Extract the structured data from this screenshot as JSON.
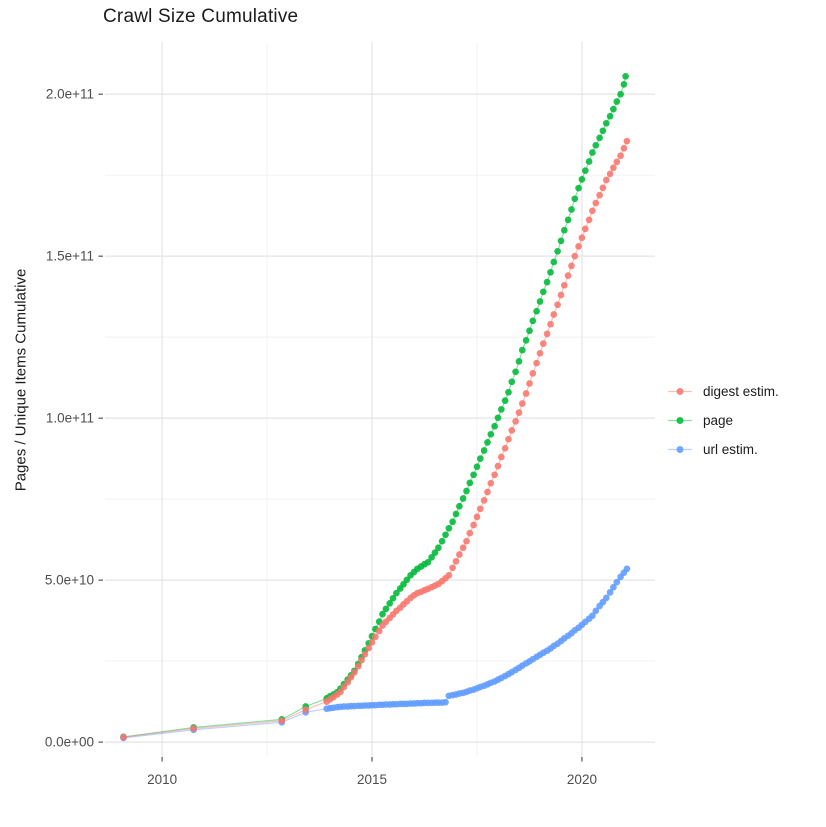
{
  "chart_data": {
    "type": "scatter",
    "title": "Crawl Size Cumulative",
    "xlabel": "",
    "ylabel": "Pages / Unique Items Cumulative",
    "grid": true,
    "legend_position": "right",
    "value_unit": "1e9 (values below are billions of pages / items)",
    "xlim": [
      2008.64,
      2021.74
    ],
    "ylim_e9": [
      -4.6,
      216.1
    ],
    "x_ticks": [
      {
        "value": 2010,
        "label": "2010"
      },
      {
        "value": 2015,
        "label": "2015"
      },
      {
        "value": 2020,
        "label": "2020"
      }
    ],
    "x_minor_ticks": [
      2012.5,
      2017.5
    ],
    "y_ticks": [
      {
        "value_e9": 0,
        "label": "0.0e+00"
      },
      {
        "value_e9": 50,
        "label": "5.0e+10"
      },
      {
        "value_e9": 100,
        "label": "1.0e+11"
      },
      {
        "value_e9": 150,
        "label": "1.5e+11"
      },
      {
        "value_e9": 200,
        "label": "2.0e+11"
      }
    ],
    "y_minor_ticks_e9": [
      25,
      75,
      125,
      175
    ],
    "draw_order": [
      1,
      2,
      0
    ],
    "series": [
      {
        "name": "digest estim.",
        "color": "#F8766D",
        "points": [
          [
            2009.08,
            1.5
          ],
          [
            2010.75,
            4.2
          ],
          [
            2012.85,
            6.6
          ],
          [
            2013.42,
            10.0
          ],
          [
            2013.92,
            12.5
          ],
          [
            2014.0,
            13.2
          ],
          [
            2014.08,
            13.9
          ],
          [
            2014.17,
            14.7
          ],
          [
            2014.25,
            15.5
          ],
          [
            2014.33,
            17.0
          ],
          [
            2014.42,
            18.5
          ],
          [
            2014.5,
            20.0
          ],
          [
            2014.58,
            21.5
          ],
          [
            2014.67,
            23.4
          ],
          [
            2014.75,
            25.3
          ],
          [
            2014.83,
            27.1
          ],
          [
            2014.92,
            29.0
          ],
          [
            2015.0,
            30.8
          ],
          [
            2015.08,
            32.5
          ],
          [
            2015.17,
            34.3
          ],
          [
            2015.25,
            36.0
          ],
          [
            2015.33,
            37.1
          ],
          [
            2015.42,
            38.3
          ],
          [
            2015.5,
            39.4
          ],
          [
            2015.58,
            40.5
          ],
          [
            2015.67,
            41.5
          ],
          [
            2015.75,
            42.5
          ],
          [
            2015.83,
            43.5
          ],
          [
            2015.92,
            44.5
          ],
          [
            2016.0,
            45.3
          ],
          [
            2016.08,
            46.0
          ],
          [
            2016.17,
            46.4
          ],
          [
            2016.25,
            46.9
          ],
          [
            2016.33,
            47.3
          ],
          [
            2016.42,
            47.8
          ],
          [
            2016.5,
            48.3
          ],
          [
            2016.58,
            48.8
          ],
          [
            2016.67,
            49.7
          ],
          [
            2016.75,
            50.6
          ],
          [
            2016.83,
            51.5
          ],
          [
            2016.92,
            53.8
          ],
          [
            2017.0,
            55.8
          ],
          [
            2017.08,
            57.9
          ],
          [
            2017.17,
            60.0
          ],
          [
            2017.25,
            62.0
          ],
          [
            2017.33,
            64.5
          ],
          [
            2017.42,
            67.0
          ],
          [
            2017.5,
            69.5
          ],
          [
            2017.58,
            72.0
          ],
          [
            2017.67,
            74.6
          ],
          [
            2017.75,
            77.2
          ],
          [
            2017.83,
            79.9
          ],
          [
            2017.92,
            82.5
          ],
          [
            2018.0,
            85.2
          ],
          [
            2018.08,
            88.0
          ],
          [
            2018.17,
            90.7
          ],
          [
            2018.25,
            93.5
          ],
          [
            2018.33,
            96.2
          ],
          [
            2018.42,
            99.0
          ],
          [
            2018.5,
            101.7
          ],
          [
            2018.58,
            104.5
          ],
          [
            2018.67,
            107.6
          ],
          [
            2018.75,
            110.7
          ],
          [
            2018.83,
            113.8
          ],
          [
            2018.92,
            117.0
          ],
          [
            2019.0,
            120.0
          ],
          [
            2019.08,
            123.0
          ],
          [
            2019.17,
            126.0
          ],
          [
            2019.25,
            129.0
          ],
          [
            2019.33,
            132.0
          ],
          [
            2019.42,
            135.0
          ],
          [
            2019.5,
            138.0
          ],
          [
            2019.58,
            141.0
          ],
          [
            2019.67,
            144.0
          ],
          [
            2019.75,
            147.0
          ],
          [
            2019.83,
            150.0
          ],
          [
            2019.92,
            153.0
          ],
          [
            2020.0,
            155.7
          ],
          [
            2020.08,
            158.4
          ],
          [
            2020.17,
            161.2
          ],
          [
            2020.25,
            164.0
          ],
          [
            2020.33,
            166.4
          ],
          [
            2020.42,
            168.8
          ],
          [
            2020.5,
            171.1
          ],
          [
            2020.58,
            173.5
          ],
          [
            2020.67,
            175.4
          ],
          [
            2020.75,
            177.3
          ],
          [
            2020.83,
            179.1
          ],
          [
            2020.92,
            181.0
          ],
          [
            2021.0,
            183.3
          ],
          [
            2021.07,
            185.5
          ]
        ]
      },
      {
        "name": "page",
        "color": "#00BA38",
        "points": [
          [
            2009.08,
            1.6
          ],
          [
            2010.75,
            4.5
          ],
          [
            2012.85,
            7.0
          ],
          [
            2013.42,
            11.0
          ],
          [
            2013.92,
            13.5
          ],
          [
            2014.0,
            14.1
          ],
          [
            2014.08,
            14.7
          ],
          [
            2014.17,
            15.4
          ],
          [
            2014.25,
            16.5
          ],
          [
            2014.33,
            17.9
          ],
          [
            2014.42,
            19.3
          ],
          [
            2014.5,
            20.6
          ],
          [
            2014.58,
            22.0
          ],
          [
            2014.67,
            24.1
          ],
          [
            2014.75,
            26.2
          ],
          [
            2014.83,
            28.3
          ],
          [
            2014.92,
            30.5
          ],
          [
            2015.0,
            32.7
          ],
          [
            2015.08,
            34.9
          ],
          [
            2015.17,
            37.2
          ],
          [
            2015.25,
            39.5
          ],
          [
            2015.33,
            41.1
          ],
          [
            2015.42,
            42.8
          ],
          [
            2015.5,
            44.4
          ],
          [
            2015.58,
            46.0
          ],
          [
            2015.67,
            47.4
          ],
          [
            2015.75,
            48.7
          ],
          [
            2015.83,
            50.1
          ],
          [
            2015.92,
            51.5
          ],
          [
            2016.0,
            52.5
          ],
          [
            2016.08,
            53.5
          ],
          [
            2016.17,
            54.2
          ],
          [
            2016.25,
            54.9
          ],
          [
            2016.33,
            55.5
          ],
          [
            2016.42,
            57.0
          ],
          [
            2016.5,
            58.5
          ],
          [
            2016.58,
            60.0
          ],
          [
            2016.67,
            62.0
          ],
          [
            2016.75,
            64.0
          ],
          [
            2016.83,
            66.0
          ],
          [
            2016.92,
            68.0
          ],
          [
            2017.0,
            70.4
          ],
          [
            2017.08,
            72.8
          ],
          [
            2017.17,
            75.2
          ],
          [
            2017.25,
            77.5
          ],
          [
            2017.33,
            80.0
          ],
          [
            2017.42,
            82.5
          ],
          [
            2017.5,
            85.0
          ],
          [
            2017.58,
            87.5
          ],
          [
            2017.67,
            90.0
          ],
          [
            2017.75,
            92.5
          ],
          [
            2017.83,
            95.0
          ],
          [
            2017.92,
            97.5
          ],
          [
            2018.0,
            100.1
          ],
          [
            2018.08,
            102.7
          ],
          [
            2018.17,
            105.4
          ],
          [
            2018.25,
            108.0
          ],
          [
            2018.33,
            111.2
          ],
          [
            2018.42,
            114.3
          ],
          [
            2018.5,
            117.5
          ],
          [
            2018.58,
            121.0
          ],
          [
            2018.67,
            124.0
          ],
          [
            2018.75,
            127.0
          ],
          [
            2018.83,
            130.0
          ],
          [
            2018.92,
            133.0
          ],
          [
            2019.0,
            136.0
          ],
          [
            2019.08,
            139.0
          ],
          [
            2019.17,
            142.0
          ],
          [
            2019.25,
            145.0
          ],
          [
            2019.33,
            148.2
          ],
          [
            2019.42,
            151.5
          ],
          [
            2019.5,
            154.7
          ],
          [
            2019.58,
            158.0
          ],
          [
            2019.67,
            161.2
          ],
          [
            2019.75,
            164.4
          ],
          [
            2019.83,
            167.7
          ],
          [
            2019.92,
            171.0
          ],
          [
            2020.0,
            173.7
          ],
          [
            2020.08,
            176.4
          ],
          [
            2020.17,
            179.2
          ],
          [
            2020.25,
            182.0
          ],
          [
            2020.33,
            184.2
          ],
          [
            2020.42,
            186.5
          ],
          [
            2020.5,
            188.7
          ],
          [
            2020.58,
            191.0
          ],
          [
            2020.67,
            193.2
          ],
          [
            2020.75,
            195.4
          ],
          [
            2020.83,
            197.7
          ],
          [
            2020.92,
            200.0
          ],
          [
            2021.0,
            203.0
          ],
          [
            2021.04,
            205.5
          ]
        ]
      },
      {
        "name": "url estim.",
        "color": "#619CFF",
        "points": [
          [
            2009.08,
            1.3
          ],
          [
            2010.75,
            3.8
          ],
          [
            2012.85,
            6.1
          ],
          [
            2013.42,
            9.2
          ],
          [
            2013.92,
            10.3
          ],
          [
            2014.0,
            10.5
          ],
          [
            2014.08,
            10.6
          ],
          [
            2014.17,
            10.8
          ],
          [
            2014.25,
            10.9
          ],
          [
            2014.33,
            11.0
          ],
          [
            2014.42,
            11.0
          ],
          [
            2014.5,
            11.1
          ],
          [
            2014.58,
            11.1
          ],
          [
            2014.67,
            11.2
          ],
          [
            2014.75,
            11.2
          ],
          [
            2014.83,
            11.3
          ],
          [
            2014.92,
            11.3
          ],
          [
            2015.0,
            11.4
          ],
          [
            2015.08,
            11.4
          ],
          [
            2015.17,
            11.5
          ],
          [
            2015.25,
            11.5
          ],
          [
            2015.33,
            11.6
          ],
          [
            2015.42,
            11.6
          ],
          [
            2015.5,
            11.7
          ],
          [
            2015.58,
            11.7
          ],
          [
            2015.67,
            11.8
          ],
          [
            2015.75,
            11.8
          ],
          [
            2015.83,
            11.8
          ],
          [
            2015.92,
            11.9
          ],
          [
            2016.0,
            11.9
          ],
          [
            2016.08,
            12.0
          ],
          [
            2016.17,
            12.0
          ],
          [
            2016.25,
            12.1
          ],
          [
            2016.33,
            12.1
          ],
          [
            2016.42,
            12.1
          ],
          [
            2016.5,
            12.2
          ],
          [
            2016.58,
            12.2
          ],
          [
            2016.67,
            12.2
          ],
          [
            2016.75,
            12.3
          ],
          [
            2016.83,
            14.3
          ],
          [
            2016.92,
            14.5
          ],
          [
            2017.0,
            14.7
          ],
          [
            2017.08,
            15.0
          ],
          [
            2017.17,
            15.2
          ],
          [
            2017.25,
            15.5
          ],
          [
            2017.33,
            15.9
          ],
          [
            2017.42,
            16.2
          ],
          [
            2017.5,
            16.6
          ],
          [
            2017.58,
            17.0
          ],
          [
            2017.67,
            17.4
          ],
          [
            2017.75,
            17.8
          ],
          [
            2017.83,
            18.3
          ],
          [
            2017.92,
            18.7
          ],
          [
            2018.0,
            19.3
          ],
          [
            2018.08,
            19.8
          ],
          [
            2018.17,
            20.4
          ],
          [
            2018.25,
            21.0
          ],
          [
            2018.33,
            21.6
          ],
          [
            2018.42,
            22.3
          ],
          [
            2018.5,
            22.9
          ],
          [
            2018.58,
            23.6
          ],
          [
            2018.67,
            24.3
          ],
          [
            2018.75,
            24.9
          ],
          [
            2018.83,
            25.6
          ],
          [
            2018.92,
            26.3
          ],
          [
            2019.0,
            26.9
          ],
          [
            2019.08,
            27.6
          ],
          [
            2019.17,
            28.2
          ],
          [
            2019.25,
            28.9
          ],
          [
            2019.33,
            29.7
          ],
          [
            2019.42,
            30.4
          ],
          [
            2019.5,
            31.2
          ],
          [
            2019.58,
            32.0
          ],
          [
            2019.67,
            32.8
          ],
          [
            2019.75,
            33.6
          ],
          [
            2019.83,
            34.5
          ],
          [
            2019.92,
            35.3
          ],
          [
            2020.0,
            36.2
          ],
          [
            2020.08,
            37.1
          ],
          [
            2020.17,
            38.1
          ],
          [
            2020.25,
            39.0
          ],
          [
            2020.33,
            40.5
          ],
          [
            2020.42,
            42.0
          ],
          [
            2020.5,
            43.2
          ],
          [
            2020.58,
            44.5
          ],
          [
            2020.67,
            46.2
          ],
          [
            2020.75,
            47.8
          ],
          [
            2020.83,
            49.4
          ],
          [
            2020.92,
            51.0
          ],
          [
            2021.0,
            52.3
          ],
          [
            2021.07,
            53.5
          ]
        ]
      }
    ],
    "style": {
      "grid_major_color": "#E4E4E4",
      "grid_minor_color": "#F1F1F1",
      "tick_color": "#333333",
      "tick_label_color": "#4D4D4D",
      "point_radius": 3.35,
      "point_opacity": 0.88,
      "line_opacity": 0.45
    }
  }
}
